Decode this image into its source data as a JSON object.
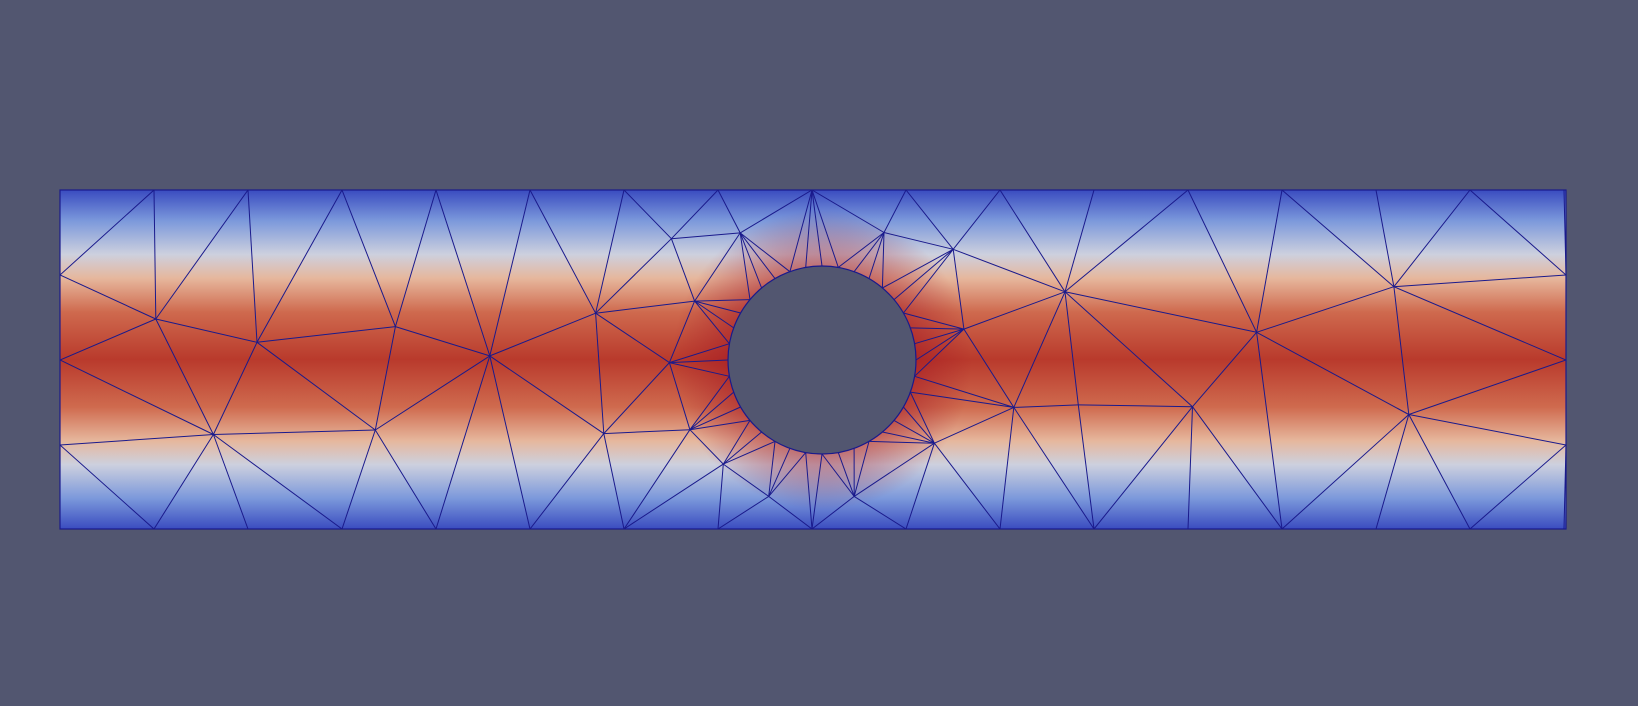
{
  "viewport": {
    "name": "3d-render-viewport",
    "background_color": "#525670"
  },
  "visualization": {
    "type": "finite-element-mesh-scalar-field",
    "description_visible_text": "",
    "geometry": "rectangular-channel-with-circular-hole",
    "mesh_type": "triangular",
    "mesh_line_color": "#1a1a8c",
    "colormap": {
      "name": "cool-to-warm",
      "low_color": "#3b4cc0",
      "mid_color": "#dddcdc",
      "high_color": "#b40426"
    },
    "field_pattern": "parabolic-profile-max-at-centerline-min-at-walls"
  }
}
